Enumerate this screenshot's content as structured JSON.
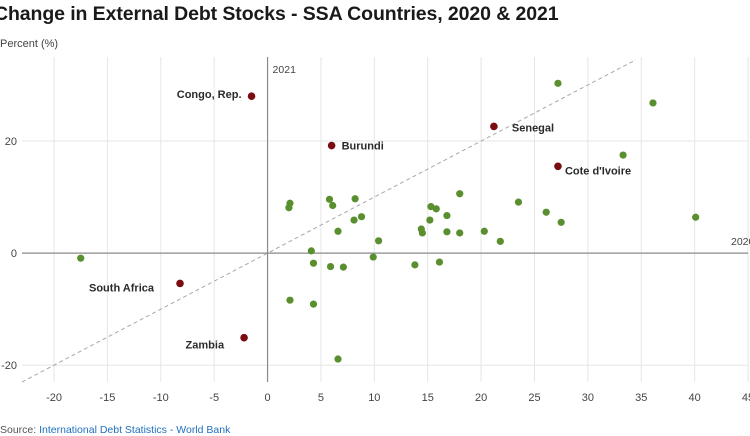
{
  "title": "Change in External Debt Stocks - SSA Countries, 2020 & 2021",
  "ylabel": "Percent (%)",
  "source": {
    "prefix": "Source: ",
    "link_text": "International Debt Statistics - World Bank"
  },
  "colors": {
    "green": "#5a8f2f",
    "highlight": "#7a0c12",
    "grid": "#e6e6e6",
    "axis": "#8a8a8a",
    "diagonal": "#a8a8a8"
  },
  "chart_data": {
    "type": "scatter",
    "xlim": [
      -23,
      45
    ],
    "ylim": [
      -23,
      35
    ],
    "xticks": [
      -20,
      -15,
      -10,
      -5,
      0,
      5,
      10,
      15,
      20,
      25,
      30,
      35,
      40,
      45
    ],
    "yticks": [
      -20,
      0,
      20
    ],
    "grid": true,
    "axis_labels": {
      "vertical_axis": "2021",
      "horizontal_axis": "2020"
    },
    "reference_line": "y = x",
    "highlighted": [
      {
        "label": "Congo, Rep.",
        "x": -1.5,
        "y": 28.0
      },
      {
        "label": "Burundi",
        "x": 6.0,
        "y": 19.2
      },
      {
        "label": "Senegal",
        "x": 21.2,
        "y": 22.6
      },
      {
        "label": "Cote d'Ivoire",
        "x": 27.2,
        "y": 15.5
      },
      {
        "label": "South Africa",
        "x": -8.2,
        "y": -5.4
      },
      {
        "label": "Zambia",
        "x": -2.2,
        "y": -15.1
      }
    ],
    "points": [
      {
        "x": 27.2,
        "y": 30.3
      },
      {
        "x": 36.1,
        "y": 26.8
      },
      {
        "x": 33.3,
        "y": 17.5
      },
      {
        "x": 40.1,
        "y": 6.4
      },
      {
        "x": 23.5,
        "y": 9.1
      },
      {
        "x": 26.1,
        "y": 7.3
      },
      {
        "x": 27.5,
        "y": 5.5
      },
      {
        "x": 18.0,
        "y": 10.6
      },
      {
        "x": 15.3,
        "y": 8.3
      },
      {
        "x": 15.8,
        "y": 7.9
      },
      {
        "x": 16.8,
        "y": 6.7
      },
      {
        "x": 15.2,
        "y": 5.9
      },
      {
        "x": 14.4,
        "y": 4.3
      },
      {
        "x": 14.5,
        "y": 3.6
      },
      {
        "x": 16.8,
        "y": 3.8
      },
      {
        "x": 18.0,
        "y": 3.6
      },
      {
        "x": 20.3,
        "y": 3.9
      },
      {
        "x": 21.8,
        "y": 2.1
      },
      {
        "x": 2.1,
        "y": 8.9
      },
      {
        "x": 2.0,
        "y": 8.1
      },
      {
        "x": 5.8,
        "y": 9.6
      },
      {
        "x": 6.1,
        "y": 8.5
      },
      {
        "x": 8.2,
        "y": 9.7
      },
      {
        "x": 8.8,
        "y": 6.5
      },
      {
        "x": 8.1,
        "y": 5.9
      },
      {
        "x": 6.6,
        "y": 3.9
      },
      {
        "x": 10.4,
        "y": 2.2
      },
      {
        "x": 4.1,
        "y": 0.4
      },
      {
        "x": -17.5,
        "y": -0.9
      },
      {
        "x": 9.9,
        "y": -0.7
      },
      {
        "x": 4.3,
        "y": -1.8
      },
      {
        "x": 5.9,
        "y": -2.4
      },
      {
        "x": 7.1,
        "y": -2.5
      },
      {
        "x": 13.8,
        "y": -2.1
      },
      {
        "x": 16.1,
        "y": -1.6
      },
      {
        "x": 2.1,
        "y": -8.4
      },
      {
        "x": 4.3,
        "y": -9.1
      },
      {
        "x": 6.6,
        "y": -18.9
      }
    ]
  }
}
